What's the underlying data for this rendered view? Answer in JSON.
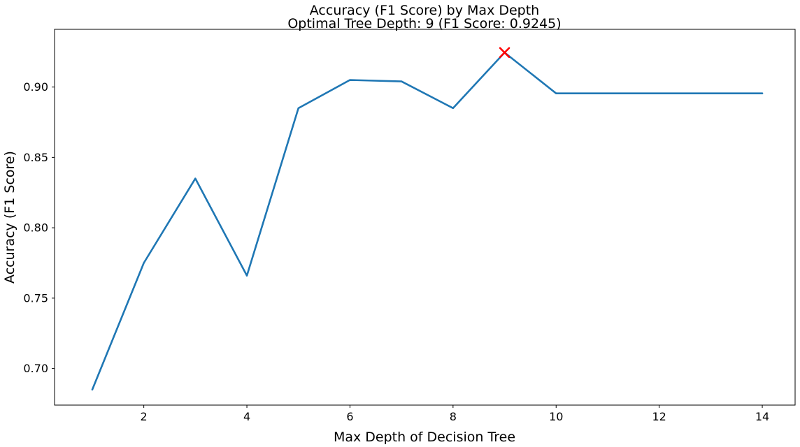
{
  "chart_data": {
    "type": "line",
    "title": "Accuracy (F1 Score) by Max Depth",
    "subtitle": "Optimal Tree Depth: 9 (F1 Score: 0.9245)",
    "xlabel": "Max Depth of Decision Tree",
    "ylabel": "Accuracy (F1 Score)",
    "x": [
      1,
      2,
      3,
      4,
      5,
      6,
      7,
      8,
      9,
      10,
      11,
      12,
      13,
      14
    ],
    "y": [
      0.685,
      0.775,
      0.835,
      0.766,
      0.885,
      0.905,
      0.904,
      0.885,
      0.9245,
      0.8955,
      0.8955,
      0.8955,
      0.8955,
      0.8955
    ],
    "series_name": "F1 Score",
    "optimal_point": {
      "x": 9,
      "y": 0.9245,
      "marker": "x",
      "color": "#ff0000",
      "label": "Optimal Tree Depth: 9 (F1 Score: 0.9245)"
    },
    "line_color": "#1f77b4",
    "x_ticks": [
      2,
      4,
      6,
      8,
      10,
      12,
      14
    ],
    "y_ticks": [
      0.7,
      0.75,
      0.8,
      0.85,
      0.9
    ],
    "y_tick_labels": [
      "0.70",
      "0.75",
      "0.80",
      "0.85",
      "0.90"
    ],
    "xlim": [
      0.268,
      14.637
    ],
    "ylim": [
      0.674,
      0.941
    ],
    "grid": false,
    "legend_position": "none",
    "axis_color": "#000000",
    "background_color": "#ffffff"
  }
}
